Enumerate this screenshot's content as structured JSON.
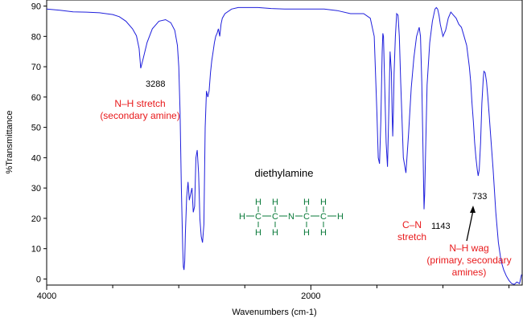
{
  "chart_data": {
    "type": "line",
    "title": "",
    "xlabel": "Wavenumbers (cm-1)",
    "ylabel": "%Transmittance",
    "xlim": [
      4000,
      400
    ],
    "ylim": [
      -2,
      92
    ],
    "x_ticks_labeled": [
      4000,
      2000
    ],
    "y_ticks": [
      0,
      10,
      20,
      30,
      40,
      50,
      60,
      70,
      80,
      90
    ],
    "grid": false,
    "series": [
      {
        "color": "#1f1fdc",
        "x": [
          4000,
          3900,
          3800,
          3700,
          3600,
          3500,
          3450,
          3400,
          3350,
          3320,
          3300,
          3288,
          3270,
          3240,
          3200,
          3150,
          3100,
          3060,
          3030,
          3010,
          3000,
          2990,
          2980,
          2970,
          2965,
          2960,
          2955,
          2950,
          2940,
          2930,
          2920,
          2910,
          2900,
          2890,
          2880,
          2870,
          2860,
          2850,
          2845,
          2840,
          2830,
          2820,
          2810,
          2800,
          2790,
          2780,
          2770,
          2760,
          2750,
          2740,
          2730,
          2720,
          2710,
          2700,
          2690,
          2680,
          2670,
          2650,
          2600,
          2550,
          2500,
          2400,
          2300,
          2200,
          2100,
          2000,
          1900,
          1800,
          1700,
          1600,
          1550,
          1520,
          1500,
          1490,
          1480,
          1470,
          1460,
          1455,
          1450,
          1440,
          1430,
          1420,
          1410,
          1400,
          1390,
          1385,
          1380,
          1375,
          1370,
          1360,
          1350,
          1340,
          1330,
          1320,
          1300,
          1280,
          1260,
          1240,
          1220,
          1200,
          1180,
          1170,
          1160,
          1150,
          1143,
          1138,
          1130,
          1120,
          1100,
          1080,
          1060,
          1050,
          1040,
          1030,
          1020,
          1000,
          980,
          960,
          940,
          920,
          900,
          880,
          860,
          840,
          820,
          800,
          790,
          780,
          770,
          760,
          750,
          740,
          733,
          725,
          715,
          705,
          695,
          690,
          680,
          670,
          660,
          650,
          640,
          620,
          600,
          580,
          560,
          540,
          520,
          500,
          480,
          460,
          440,
          420,
          405
        ],
        "y": [
          89,
          88.6,
          88.1,
          88.0,
          87.8,
          87.2,
          86.5,
          85.0,
          82.5,
          80.2,
          76.0,
          69.5,
          72.5,
          78.0,
          82.5,
          85.0,
          85.5,
          84.5,
          82.0,
          77.0,
          70.0,
          55.0,
          30.0,
          10.0,
          4.0,
          3.0,
          6.0,
          15.0,
          27.0,
          32.0,
          26.0,
          28.0,
          30.0,
          22.0,
          24.0,
          40.0,
          42.5,
          35.0,
          28.0,
          20.0,
          14.0,
          12.0,
          18.0,
          50.0,
          62.0,
          60.0,
          62.0,
          68.0,
          72.0,
          75.0,
          78.0,
          80.0,
          81.0,
          82.5,
          80.0,
          84.0,
          86.0,
          87.5,
          89.0,
          89.5,
          89.5,
          89.5,
          89.2,
          89.0,
          89.0,
          89.0,
          89.0,
          88.5,
          87.5,
          87.5,
          86.0,
          80.0,
          55.0,
          40.0,
          38.0,
          52.0,
          75.0,
          81.0,
          80.0,
          62.0,
          45.0,
          37.0,
          55.0,
          75.0,
          68.0,
          55.0,
          47.0,
          55.0,
          68.0,
          80.0,
          87.5,
          87.0,
          80.0,
          65.0,
          40.0,
          35.0,
          48.0,
          63.0,
          73.0,
          80.0,
          83.0,
          80.0,
          65.0,
          40.0,
          23.0,
          28.0,
          45.0,
          64.0,
          78.0,
          85.0,
          89.0,
          89.5,
          89.0,
          87.0,
          84.0,
          80.0,
          82.0,
          86.0,
          88.0,
          87.0,
          86.0,
          84.0,
          83.0,
          80.0,
          77.0,
          70.0,
          65.0,
          58.0,
          52.0,
          45.0,
          40.0,
          36.0,
          34.0,
          36.0,
          45.0,
          58.0,
          66.0,
          68.5,
          68.0,
          65.0,
          60.0,
          54.0,
          48.0,
          36.0,
          22.0,
          12.0,
          6.0,
          3.0,
          1.0,
          -0.5,
          -1.5,
          -1.8,
          -1.0,
          -1.5,
          1.5
        ]
      }
    ],
    "annotations": [
      {
        "text": "3288",
        "x": 3288
      },
      {
        "text": "N–H stretch",
        "group": "nh_stretch"
      },
      {
        "text": "(secondary amine)",
        "group": "nh_stretch"
      },
      {
        "text": "C–N",
        "group": "cn_stretch"
      },
      {
        "text": "stretch",
        "group": "cn_stretch"
      },
      {
        "text": "1143",
        "x": 1143
      },
      {
        "text": "733",
        "x": 733
      },
      {
        "text": "N–H wag",
        "group": "nh_wag"
      },
      {
        "text": "(primary, secondary",
        "group": "nh_wag"
      },
      {
        "text": "amines)",
        "group": "nh_wag"
      }
    ],
    "molecule": {
      "name": "diethylamine",
      "row_top": [
        "H",
        "H",
        "H",
        "H"
      ],
      "row_mid": [
        "H",
        "C",
        "C",
        "N",
        "C",
        "C",
        "H"
      ],
      "row_bottom": [
        "H",
        "H",
        "H",
        "H"
      ]
    }
  },
  "colors": {
    "spectrum": "#1f1fdc",
    "annotation": "#e8191b",
    "molecule": "#0a7a3a",
    "axis": "#000000"
  }
}
